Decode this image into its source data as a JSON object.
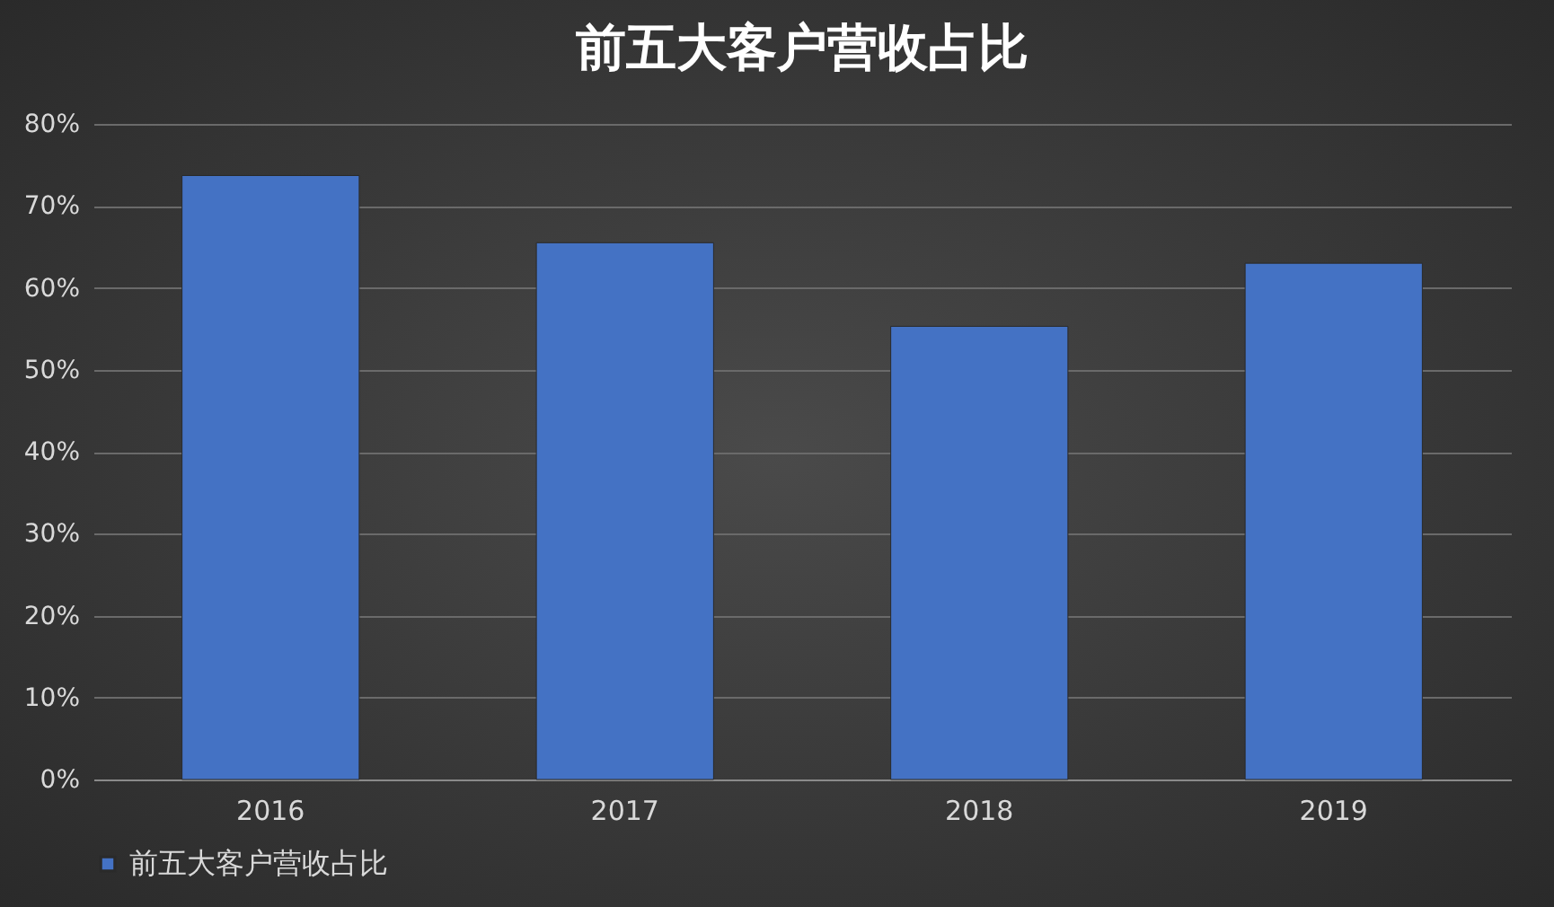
{
  "chart_data": {
    "type": "bar",
    "title": "前五大客户营收占比",
    "categories": [
      "2016",
      "2017",
      "2018",
      "2019"
    ],
    "series": [
      {
        "name": "前五大客户营收占比",
        "color": "#4472c4",
        "values": [
          73.7,
          65.5,
          55.3,
          63.0
        ]
      }
    ],
    "ylim": [
      0,
      80
    ],
    "yticks": [
      {
        "value": 0,
        "label": "0%"
      },
      {
        "value": 10,
        "label": "10%"
      },
      {
        "value": 20,
        "label": "20%"
      },
      {
        "value": 30,
        "label": "30%"
      },
      {
        "value": 40,
        "label": "40%"
      },
      {
        "value": 50,
        "label": "50%"
      },
      {
        "value": 60,
        "label": "60%"
      },
      {
        "value": 70,
        "label": "70%"
      },
      {
        "value": 80,
        "label": "80%"
      }
    ],
    "grid": "y",
    "legend": "bottom"
  }
}
